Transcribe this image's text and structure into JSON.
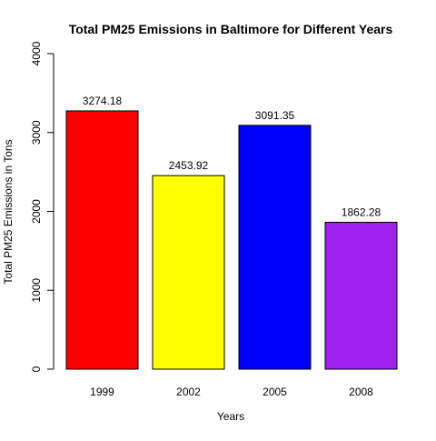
{
  "chart_data": {
    "type": "bar",
    "title": "Total PM25 Emissions in Baltimore for Different Years",
    "xlabel": "Years",
    "ylabel": "Total PM25 Emissions in Tons",
    "categories": [
      "1999",
      "2002",
      "2005",
      "2008"
    ],
    "values": [
      3274.18,
      2453.92,
      3091.35,
      1862.28
    ],
    "value_labels": [
      "3274.18",
      "2453.92",
      "3091.35",
      "1862.28"
    ],
    "colors": [
      "#ff0000",
      "#ffff00",
      "#0000ff",
      "#a020f0"
    ],
    "ylim": [
      0,
      4000
    ],
    "yticks": [
      0,
      1000,
      2000,
      3000,
      4000
    ],
    "ytick_labels": [
      "0",
      "1000",
      "2000",
      "3000",
      "4000"
    ],
    "grid": false,
    "legend": "none"
  }
}
